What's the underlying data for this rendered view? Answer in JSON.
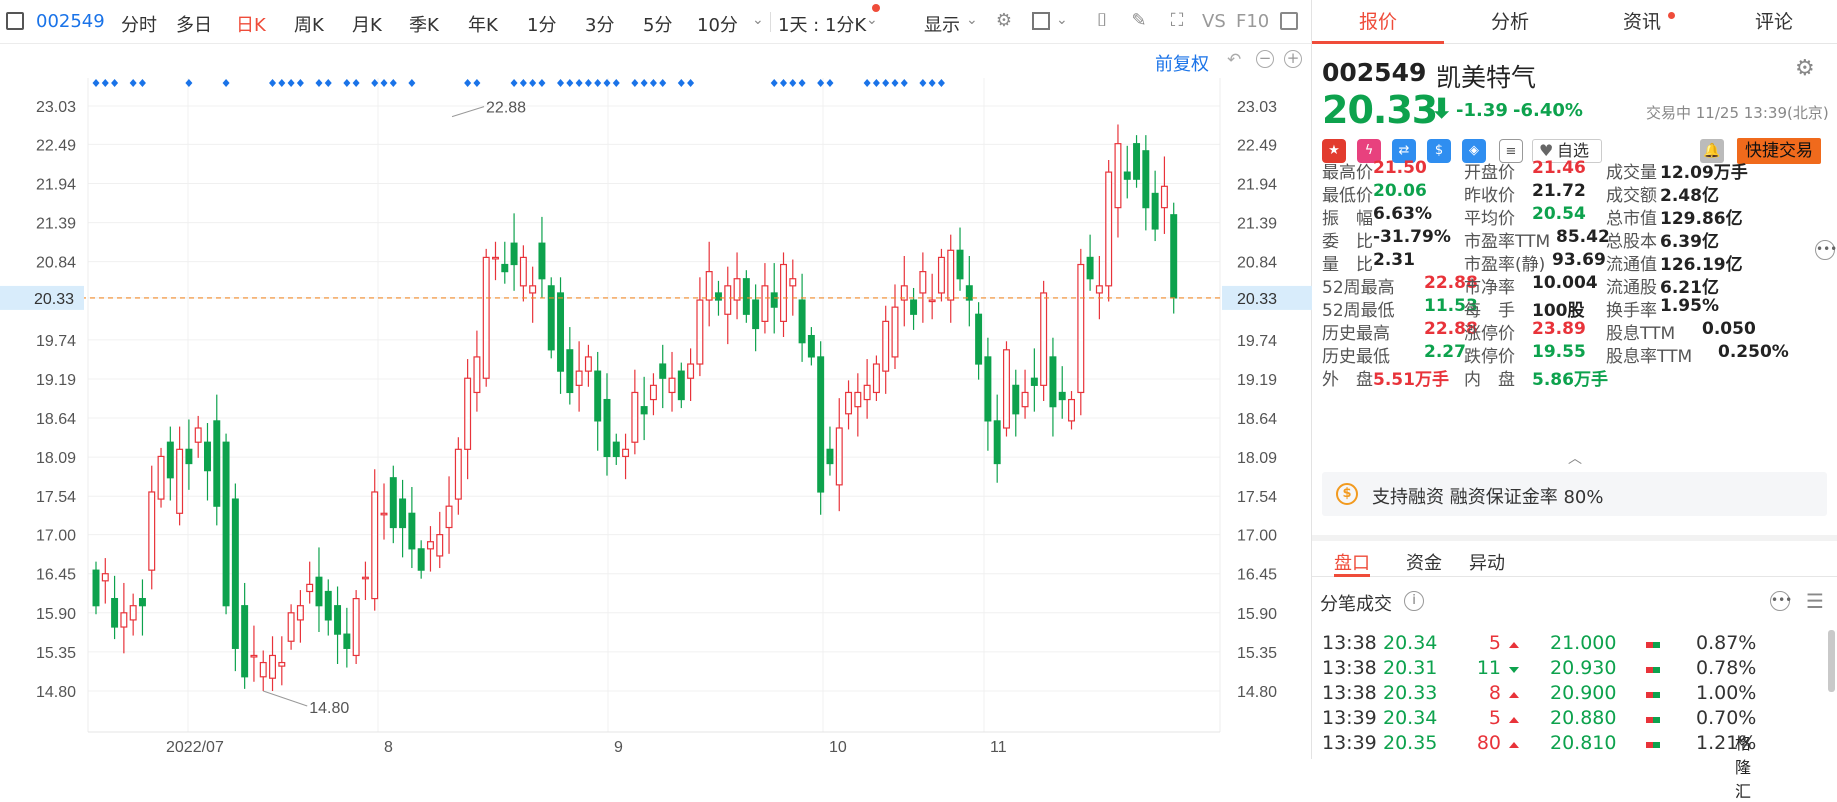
{
  "toolbar": {
    "code": "002549",
    "periods": [
      "分时",
      "多日",
      "日K",
      "周K",
      "月K",
      "季K",
      "年K",
      "1分",
      "3分",
      "5分",
      "10分"
    ],
    "active_period": "日K",
    "intraday": "1天 : 1分K",
    "display": "显示",
    "vs": "VS",
    "f10": "F10"
  },
  "chart": {
    "adjust_label": "前复权",
    "y_ticks": [
      "23.03",
      "22.49",
      "21.94",
      "21.39",
      "20.84",
      "20.33",
      "19.74",
      "19.19",
      "18.64",
      "18.09",
      "17.54",
      "17.00",
      "16.45",
      "15.90",
      "15.35",
      "14.80"
    ],
    "x_labels": [
      "2022/07",
      "8",
      "9",
      "10",
      "11"
    ],
    "high_annotation": "22.88",
    "low_annotation": "14.80",
    "current_price_tag": "20.33",
    "colors": {
      "up": "#e8333a",
      "down": "#0da24d",
      "price_line": "#f08a2a",
      "markers": "#1a73e8"
    }
  },
  "chart_data": {
    "type": "candlestick",
    "current_price": 20.33,
    "ylim": [
      14.8,
      23.03
    ],
    "period_high": 22.88,
    "period_low": 14.8,
    "x_labels": [
      "2022/07",
      "8",
      "9",
      "10",
      "11"
    ]
  },
  "tabs": [
    "报价",
    "分析",
    "资讯",
    "评论"
  ],
  "active_tab": "报价",
  "stock": {
    "code": "002549",
    "name": "凯美特气",
    "price": "20.33",
    "change": "-1.39",
    "change_pct": "-6.40%",
    "status": "交易中 11/25 13:39(北京)",
    "watchlist": "自选",
    "quick_trade": "快捷交易"
  },
  "quote_grid": [
    [
      {
        "label": "最高价",
        "value": "21.50",
        "color": "red"
      },
      {
        "label": "开盘价",
        "value": "21.46",
        "color": "red"
      },
      {
        "label": "成交量",
        "value": "12.09万手",
        "color": "dark"
      }
    ],
    [
      {
        "label": "最低价",
        "value": "20.06",
        "color": "green"
      },
      {
        "label": "昨收价",
        "value": "21.72",
        "color": "dark"
      },
      {
        "label": "成交额",
        "value": "2.48亿",
        "color": "dark"
      }
    ],
    [
      {
        "label": "振　幅",
        "value": "6.63%",
        "color": "dark"
      },
      {
        "label": "平均价",
        "value": "20.54",
        "color": "green"
      },
      {
        "label": "总市值",
        "value": "129.86亿",
        "color": "dark"
      }
    ],
    [
      {
        "label": "委　比",
        "value": "-31.79%",
        "color": "dark"
      },
      {
        "label": "市盈率TTM",
        "value": "85.42",
        "color": "dark"
      },
      {
        "label": "总股本",
        "value": "6.39亿",
        "color": "dark"
      }
    ],
    [
      {
        "label": "量　比",
        "value": "2.31",
        "color": "dark"
      },
      {
        "label": "市盈率(静)",
        "value": "93.69",
        "color": "dark"
      },
      {
        "label": "流通值",
        "value": "126.19亿",
        "color": "dark"
      }
    ],
    [
      {
        "label": "52周最高",
        "value": "22.88",
        "color": "red"
      },
      {
        "label": "市净率",
        "value": "10.004",
        "color": "dark"
      },
      {
        "label": "流通股",
        "value": "6.21亿",
        "color": "dark"
      }
    ],
    [
      {
        "label": "52周最低",
        "value": "11.53",
        "color": "green"
      },
      {
        "label": "每　手",
        "value": "100股",
        "color": "dark"
      },
      {
        "label": "换手率",
        "value": "1.95%",
        "color": "dark"
      }
    ],
    [
      {
        "label": "历史最高",
        "value": "22.88",
        "color": "red"
      },
      {
        "label": "涨停价",
        "value": "23.89",
        "color": "red"
      },
      {
        "label": "股息TTM",
        "value": "0.050",
        "color": "dark"
      }
    ],
    [
      {
        "label": "历史最低",
        "value": "2.27",
        "color": "green"
      },
      {
        "label": "跌停价",
        "value": "19.55",
        "color": "green"
      },
      {
        "label": "股息率TTM",
        "value": "0.250%",
        "color": "dark"
      }
    ],
    [
      {
        "label": "外　盘",
        "value": "5.51万手",
        "color": "red"
      },
      {
        "label": "内　盘",
        "value": "5.86万手",
        "color": "green"
      },
      {
        "label": "",
        "value": "",
        "color": "dark"
      }
    ]
  ],
  "margin_note": "支持融资 融资保证金率 80%",
  "subtabs": [
    "盘口",
    "资金",
    "异动"
  ],
  "active_subtab": "盘口",
  "ticks_title": "分笔成交",
  "ticks": [
    {
      "time": "13:38",
      "price": "20.34",
      "vol": "5",
      "dir": "up",
      "p2": "21.000",
      "pct": "0.87%"
    },
    {
      "time": "13:38",
      "price": "20.31",
      "vol": "11",
      "dir": "down",
      "p2": "20.930",
      "pct": "0.78%"
    },
    {
      "time": "13:38",
      "price": "20.33",
      "vol": "8",
      "dir": "up",
      "p2": "20.900",
      "pct": "1.00%"
    },
    {
      "time": "13:39",
      "price": "20.34",
      "vol": "5",
      "dir": "up",
      "p2": "20.880",
      "pct": "0.70%"
    },
    {
      "time": "13:39",
      "price": "20.35",
      "vol": "80",
      "dir": "up",
      "p2": "20.810",
      "pct": "1.21%"
    }
  ],
  "watermark": "格隆汇"
}
